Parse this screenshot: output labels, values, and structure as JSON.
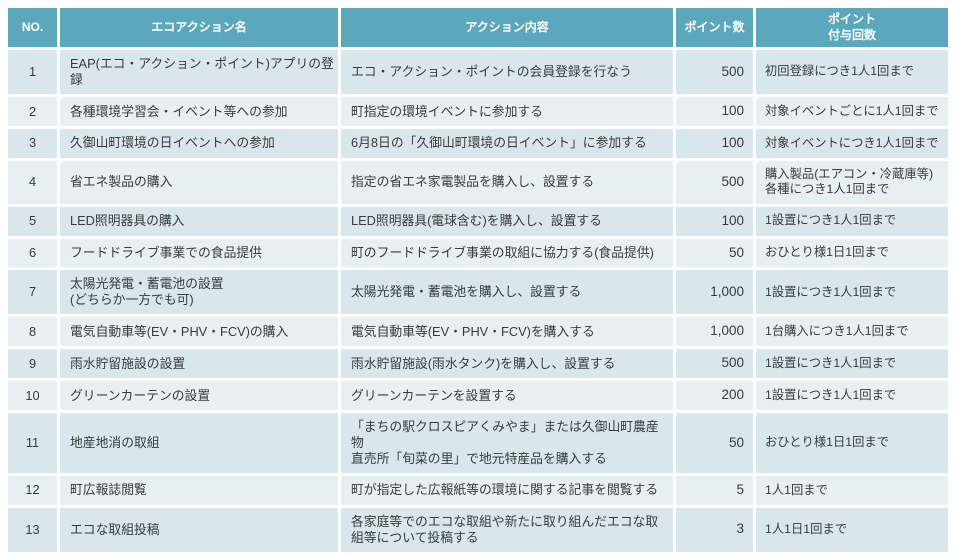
{
  "colors": {
    "header_bg": "#5BA7BC",
    "header_text": "#FFFFFF",
    "row_odd": "#D9E7EC",
    "row_even": "#E7EFF2",
    "body_text": "#3A3A3A"
  },
  "table": {
    "headers": {
      "no": "NO.",
      "name": "エコアクション名",
      "content": "アクション内容",
      "points": "ポイント数",
      "limit": "ポイント\n付与回数"
    },
    "rows": [
      {
        "no": "1",
        "name": "EAP(エコ・アクション・ポイント)アプリの登録",
        "content": "エコ・アクション・ポイントの会員登録を行なう",
        "points": "500",
        "limit": "初回登録につき1人1回まで"
      },
      {
        "no": "2",
        "name": "各種環境学習会・イベント等への参加",
        "content": "町指定の環境イベントに参加する",
        "points": "100",
        "limit": "対象イベントごとに1人1回まで"
      },
      {
        "no": "3",
        "name": "久御山町環境の日イベントへの参加",
        "content": "6月8日の「久御山町環境の日イベント」に参加する",
        "points": "100",
        "limit": "対象イベントにつき1人1回まで"
      },
      {
        "no": "4",
        "name": "省エネ製品の購入",
        "content": "指定の省エネ家電製品を購入し、設置する",
        "points": "500",
        "limit": "購入製品(エアコン・冷蔵庫等)\n各種につき1人1回まで"
      },
      {
        "no": "5",
        "name": "LED照明器具の購入",
        "content": "LED照明器具(電球含む)を購入し、設置する",
        "points": "100",
        "limit": "1設置につき1人1回まで"
      },
      {
        "no": "6",
        "name": "フードドライブ事業での食品提供",
        "content": "町のフードドライブ事業の取組に協力する(食品提供)",
        "points": "50",
        "limit": "おひとり様1日1回まで"
      },
      {
        "no": "7",
        "name": "太陽光発電・蓄電池の設置\n(どちらか一方でも可)",
        "content": "太陽光発電・蓄電池を購入し、設置する",
        "points": "1,000",
        "limit": "1設置につき1人1回まで"
      },
      {
        "no": "8",
        "name": "電気自動車等(EV・PHV・FCV)の購入",
        "content": "電気自動車等(EV・PHV・FCV)を購入する",
        "points": "1,000",
        "limit": "1台購入につき1人1回まで"
      },
      {
        "no": "9",
        "name": "雨水貯留施設の設置",
        "content": "雨水貯留施設(雨水タンク)を購入し、設置する",
        "points": "500",
        "limit": "1設置につき1人1回まで"
      },
      {
        "no": "10",
        "name": "グリーンカーテンの設置",
        "content": "グリーンカーテンを設置する",
        "points": "200",
        "limit": "1設置につき1人1回まで"
      },
      {
        "no": "11",
        "name": "地産地消の取組",
        "content": "「まちの駅クロスピアくみやま」または久御山町農産物\n直売所「旬菜の里」で地元特産品を購入する",
        "points": "50",
        "limit": "おひとり様1日1回まで"
      },
      {
        "no": "12",
        "name": "町広報誌閲覧",
        "content": "町が指定した広報紙等の環境に関する記事を閲覧する",
        "points": "5",
        "limit": "1人1回まで"
      },
      {
        "no": "13",
        "name": "エコな取組投稿",
        "content": "各家庭等でのエコな取組や新たに取り組んだエコな取\n組等について投稿する",
        "points": "3",
        "limit": "1人1日1回まで"
      }
    ]
  }
}
